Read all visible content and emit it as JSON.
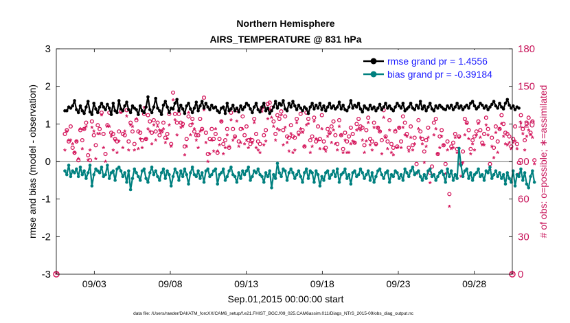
{
  "chart_data": {
    "type": "line",
    "title": "Northern Hemisphere",
    "subtitle": "AIRS_TEMPERATURE @ 831 hPa",
    "xlabel": "Sep.01,2015 00:00:00 start",
    "ylabel": "rmse and bias (model - observation)",
    "ylabel_right": "# of obs: o=possible; ∗=assimilated",
    "ylim": [
      -3,
      3
    ],
    "ylim_right": [
      0,
      180
    ],
    "xlim_days": [
      0.5,
      30.5
    ],
    "yticks": [
      "3",
      "2",
      "1",
      "0",
      "-1",
      "-2",
      "-3"
    ],
    "yticks_right": [
      "180",
      "150",
      "120",
      "90",
      "60",
      "30",
      "0"
    ],
    "xtick_labels": [
      "09/03",
      "09/08",
      "09/13",
      "09/18",
      "09/23",
      "09/28"
    ],
    "xtick_days": [
      3,
      8,
      13,
      18,
      23,
      28
    ],
    "footnote": "data file: /Users/raeder/DAI/ATM_forcXX/CAM6_setup/f.e21.FHIST_BGC.f09_025.CAM6assim.011/Diags_NTrS_2015-09/obs_diag_output.nc",
    "colors": {
      "rmse": "#000000",
      "bias": "#00807f",
      "obs": "#d4145a",
      "legend_text": "#1a1aff",
      "zero_line": "#b3b3b3"
    },
    "series": [
      {
        "name": "rmse grand pr = 1.4556",
        "values": [
          1.35,
          1.35,
          1.45,
          1.42,
          1.48,
          1.62,
          1.38,
          1.3,
          1.48,
          1.35,
          1.28,
          1.45,
          1.6,
          1.32,
          1.25,
          1.55,
          1.4,
          1.3,
          1.45,
          1.55,
          1.45,
          1.38,
          1.52,
          1.42,
          1.25,
          1.55,
          1.35,
          1.3,
          1.62,
          1.4,
          1.35,
          1.48,
          1.58,
          1.38,
          1.3,
          1.48,
          1.42,
          1.38,
          1.25,
          1.48,
          1.35,
          1.3,
          1.45,
          1.72,
          1.38,
          1.3,
          1.45,
          1.68,
          1.42,
          1.35,
          1.25,
          1.5,
          1.6,
          1.45,
          1.3,
          1.42,
          1.4,
          1.55,
          1.65,
          1.35,
          1.5,
          1.4,
          1.28,
          1.48,
          1.55,
          1.4,
          1.3,
          1.42,
          1.58,
          1.35,
          1.48,
          1.6,
          1.42,
          1.55,
          1.45,
          1.38,
          1.5,
          1.42,
          1.45,
          1.35,
          1.3,
          1.42,
          1.45,
          1.28,
          1.55,
          1.35,
          1.4,
          1.5,
          1.35,
          1.42,
          1.32,
          1.48,
          1.38,
          1.45,
          1.55,
          1.5,
          1.4,
          1.3,
          1.45,
          1.55,
          1.38,
          1.32,
          1.45,
          1.55,
          1.35,
          1.42,
          1.28,
          1.35,
          1.45,
          1.6,
          1.42,
          1.55,
          1.5,
          1.62,
          1.4,
          1.35,
          1.55,
          1.45,
          1.6,
          1.48,
          1.38,
          1.5,
          1.42,
          1.35,
          1.45,
          1.4,
          1.28,
          1.45,
          1.55,
          1.4,
          1.5,
          1.42,
          1.55,
          1.38,
          1.48,
          1.35,
          1.45,
          1.55,
          1.42,
          1.48,
          1.4,
          1.45,
          1.58,
          1.4,
          1.5,
          1.38,
          1.35,
          1.45,
          1.62,
          1.42,
          1.5,
          1.45,
          1.55,
          1.4,
          1.32,
          1.48,
          1.42,
          1.38,
          1.5,
          1.4,
          1.45,
          1.35,
          1.42,
          1.52,
          1.38,
          1.45,
          1.55,
          1.42,
          1.48,
          1.4,
          1.35,
          1.45,
          1.55,
          1.48,
          1.42,
          1.55,
          1.35,
          1.4,
          1.45,
          1.55,
          1.42,
          1.38,
          1.5,
          1.42,
          1.6,
          1.4,
          1.48,
          1.35,
          1.45,
          1.55,
          1.4,
          1.35,
          1.48,
          1.42,
          1.5,
          1.45,
          1.4,
          1.38,
          1.48,
          1.42,
          1.5,
          1.38,
          1.45,
          1.55,
          1.42,
          1.48,
          1.38,
          1.45,
          1.5,
          1.42,
          1.55,
          1.6,
          1.48,
          1.4,
          1.45,
          1.55,
          1.5,
          1.42,
          1.48,
          1.38,
          1.45,
          1.52,
          1.6,
          1.48,
          1.42,
          1.55,
          1.45,
          1.4,
          1.55,
          1.65,
          1.5,
          1.42,
          1.48,
          1.38,
          1.45,
          1.42
        ]
      },
      {
        "name": "bias grand pr = -0.39184",
        "values": [
          -0.25,
          -0.35,
          -0.1,
          -0.4,
          -0.25,
          -0.3,
          -0.2,
          -0.4,
          -0.15,
          -0.35,
          -0.25,
          -0.45,
          -0.3,
          -0.1,
          -0.65,
          -0.35,
          -0.2,
          -0.25,
          -0.3,
          -0.15,
          -0.4,
          -0.35,
          -0.1,
          -0.45,
          -0.3,
          -0.25,
          -0.5,
          -0.2,
          -0.15,
          -0.25,
          -0.4,
          -0.3,
          -0.55,
          -0.25,
          -0.75,
          -0.45,
          -0.2,
          -0.3,
          -0.4,
          -0.5,
          -0.25,
          -0.2,
          -0.45,
          -0.55,
          -0.3,
          -0.15,
          -0.35,
          -0.25,
          -0.4,
          -0.5,
          -0.3,
          -0.2,
          -0.45,
          -0.25,
          -0.35,
          -0.65,
          -0.4,
          -0.2,
          -0.3,
          -0.5,
          -0.25,
          -0.4,
          -0.2,
          -0.35,
          -0.6,
          -0.3,
          -0.15,
          -0.35,
          -0.4,
          -0.25,
          -0.45,
          -0.3,
          -0.55,
          -0.25,
          -0.2,
          -0.4,
          -0.35,
          -0.25,
          -0.2,
          -0.6,
          -0.35,
          -0.3,
          -0.2,
          -0.5,
          -0.4,
          -0.25,
          -0.15,
          -0.35,
          -0.4,
          -0.55,
          -0.3,
          -0.45,
          -0.25,
          -0.35,
          -0.25,
          -0.15,
          -0.5,
          -0.4,
          -0.25,
          -0.3,
          -0.2,
          -0.35,
          -0.4,
          -0.55,
          -0.3,
          -0.4,
          -0.25,
          -0.7,
          -0.35,
          -0.45,
          -0.05,
          -0.3,
          -0.4,
          -0.2,
          -0.25,
          -0.5,
          -0.3,
          -0.2,
          -0.3,
          -0.45,
          -0.35,
          -0.25,
          -0.4,
          -0.55,
          -0.3,
          -0.2,
          -0.45,
          -0.25,
          -0.3,
          -0.55,
          -0.25,
          -0.35,
          -0.65,
          -0.4,
          -0.5,
          -0.3,
          -0.25,
          -0.45,
          -0.35,
          -0.25,
          -0.4,
          -0.2,
          -0.55,
          -0.35,
          -0.3,
          -0.2,
          -0.45,
          -0.35,
          -0.6,
          -0.3,
          -0.25,
          -0.4,
          -0.35,
          -0.2,
          -0.3,
          -0.45,
          -0.35,
          -0.25,
          -0.5,
          -0.3,
          -0.55,
          -0.4,
          -0.25,
          -0.2,
          -0.35,
          -0.45,
          -0.3,
          -0.25,
          -0.55,
          -0.35,
          -0.4,
          -0.25,
          -0.3,
          -0.45,
          -0.35,
          -0.5,
          -0.2,
          -0.3,
          -0.4,
          -0.25,
          -0.15,
          -0.35,
          -0.3,
          -0.25,
          -0.4,
          -0.5,
          -0.35,
          -0.45,
          -0.25,
          -0.2,
          -0.4,
          -0.35,
          -0.5,
          -0.4,
          -0.3,
          -0.25,
          -0.35,
          -0.55,
          -0.2,
          -0.4,
          -0.25,
          -0.5,
          -0.35,
          -0.45,
          0.35,
          -0.1,
          -0.4,
          -0.25,
          -0.2,
          -0.45,
          -0.3,
          -0.5,
          -0.35,
          -0.3,
          -0.2,
          -0.4,
          -0.35,
          -0.5,
          -0.25,
          -0.3,
          -0.15,
          -0.45,
          -0.35,
          -0.25,
          -0.4,
          -0.3,
          -0.45,
          -0.35,
          -0.6,
          -0.3,
          -0.45,
          -0.55,
          -0.25,
          -0.65,
          -0.35,
          -0.4,
          -0.2,
          -0.5,
          -0.3,
          -0.6,
          -0.7,
          -0.4,
          -0.25,
          -0.55
        ]
      },
      {
        "name": "possible",
        "values": [
          112,
          115,
          106,
          118,
          101,
          97,
          106,
          91,
          115,
          107,
          116,
          121,
          95,
          91,
          122,
          111,
          103,
          119,
          116,
          129,
          112,
          96,
          119,
          129,
          113,
          112,
          108,
          106,
          114,
          130,
          112,
          111,
          131,
          106,
          121,
          114,
          104,
          123,
          114,
          113,
          107,
          128,
          108,
          127,
          122,
          113,
          123,
          114,
          121,
          111,
          114,
          121,
          109,
          112,
          128,
          104,
          145,
          128,
          121,
          128,
          121,
          120,
          102,
          108,
          126,
          119,
          124,
          114,
          111,
          111,
          124,
          116,
          141,
          113,
          96,
          108,
          116,
          108,
          112,
          97,
          108,
          122,
          104,
          107,
          116,
          101,
          129,
          116,
          110,
          131,
          106,
          116,
          126,
          111,
          118,
          107,
          104,
          107,
          124,
          112,
          106,
          104,
          133,
          111,
          115,
          136,
          137,
          133,
          122,
          112,
          127,
          124,
          130,
          115,
          126,
          110,
          109,
          119,
          110,
          109,
          124,
          113,
          128,
          115,
          102,
          129,
          124,
          107,
          110,
          125,
          106,
          118,
          108,
          127,
          106,
          101,
          116,
          113,
          118,
          122,
          111,
          104,
          123,
          111,
          100,
          113,
          106,
          110,
          117,
          112,
          105,
          120,
          124,
          118,
          117,
          103,
          115,
          125,
          108,
          106,
          121,
          104,
          117,
          114,
          107,
          131,
          110,
          106,
          123,
          104,
          101,
          114,
          102,
          117,
          106,
          126,
          121,
          112,
          101,
          118,
          103,
          109,
          88,
          123,
          114,
          108,
          98,
          107,
          117,
          81,
          86,
          121,
          124,
          96,
          110,
          115,
          103,
          88,
          106,
          64,
          102,
          105,
          112,
          100,
          110,
          88,
          98,
          124,
          121,
          115,
          100,
          107,
          110,
          114,
          122,
          115,
          105,
          112,
          125,
          116,
          88,
          109,
          101,
          118,
          106,
          116,
          127,
          120,
          113,
          112,
          110,
          102,
          108,
          118,
          104,
          89,
          127,
          116,
          107,
          120,
          125,
          113,
          122,
          91
        ]
      },
      {
        "name": "assimilated",
        "values": [
          98,
          113,
          106,
          106,
          103,
          96,
          105,
          91,
          115,
          99,
          115,
          117,
          90,
          98,
          116,
          113,
          91,
          111,
          111,
          126,
          100,
          89,
          117,
          117,
          109,
          98,
          106,
          96,
          105,
          128,
          100,
          113,
          125,
          98,
          118,
          117,
          98,
          123,
          99,
          107,
          100,
          132,
          107,
          115,
          113,
          103,
          118,
          106,
          117,
          114,
          113,
          115,
          104,
          107,
          118,
          101,
          138,
          122,
          110,
          130,
          116,
          117,
          94,
          101,
          128,
          110,
          119,
          115,
          106,
          100,
          113,
          114,
          130,
          104,
          89,
          95,
          106,
          97,
          115,
          97,
          102,
          121,
          95,
          100,
          110,
          101,
          122,
          106,
          108,
          121,
          101,
          104,
          115,
          103,
          106,
          100,
          107,
          104,
          120,
          100,
          98,
          96,
          129,
          102,
          105,
          123,
          130,
          124,
          117,
          106,
          115,
          114,
          126,
          102,
          116,
          104,
          97,
          111,
          96,
          98,
          120,
          110,
          115,
          112,
          101,
          118,
          119,
          96,
          101,
          121,
          107,
          106,
          99,
          115,
          99,
          97,
          109,
          111,
          104,
          114,
          103,
          98,
          117,
          110,
          96,
          106,
          96,
          96,
          103,
          105,
          104,
          114,
          115,
          114,
          106,
          96,
          105,
          120,
          102,
          98,
          116,
          102,
          116,
          113,
          95,
          124,
          108,
          99,
          114,
          96,
          94,
          114,
          100,
          116,
          100,
          116,
          110,
          109,
          97,
          108,
          98,
          103,
          79,
          115,
          108,
          103,
          88,
          101,
          108,
          72,
          78,
          110,
          115,
          95,
          100,
          109,
          102,
          79,
          98,
          53,
          99,
          100,
          108,
          96,
          108,
          77,
          88,
          110,
          119,
          107,
          95,
          103,
          98,
          110,
          119,
          108,
          102,
          102,
          118,
          110,
          82,
          101,
          92,
          112,
          96,
          115,
          119,
          109,
          103,
          102,
          104,
          99,
          104,
          105,
          99,
          79,
          120,
          111,
          98,
          109,
          114,
          110,
          108,
          87
        ]
      }
    ]
  }
}
